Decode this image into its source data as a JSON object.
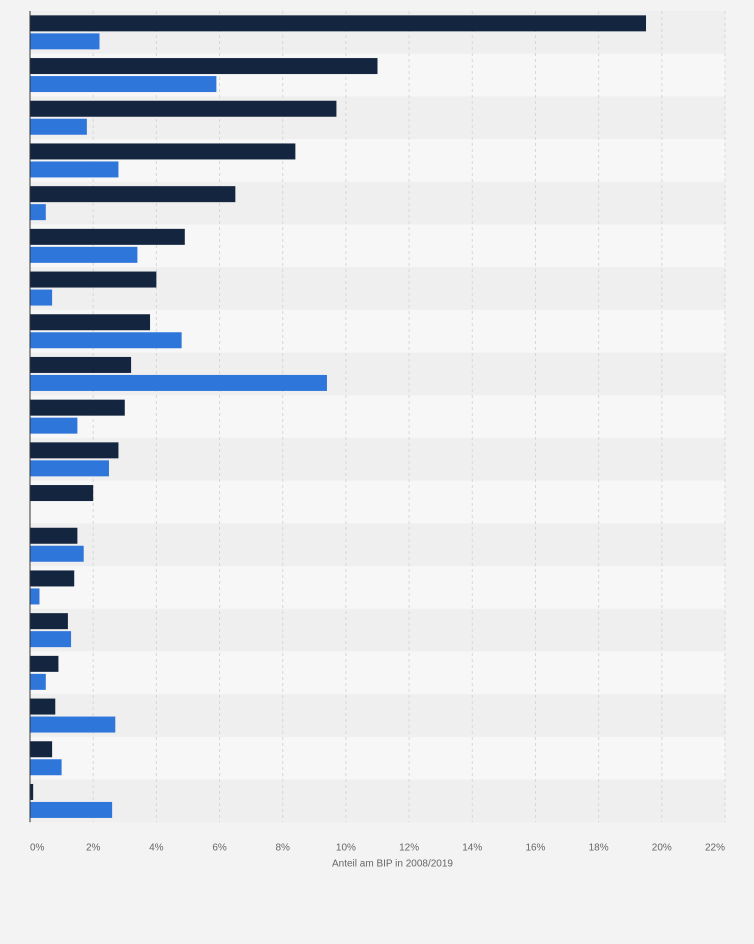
{
  "chart_data": {
    "type": "bar",
    "orientation": "horizontal",
    "categories": [
      "",
      "",
      "",
      "",
      "",
      "",
      "",
      "",
      "",
      "",
      "",
      "",
      "",
      "",
      "",
      "",
      "",
      "",
      ""
    ],
    "series": [
      {
        "values": [
          19.5,
          11.0,
          9.7,
          8.4,
          6.5,
          4.9,
          4.0,
          3.8,
          3.2,
          3.0,
          2.8,
          2.0,
          1.5,
          1.4,
          1.2,
          0.9,
          0.8,
          0.7,
          0.1
        ],
        "color": "#14263f"
      },
      {
        "values": [
          2.2,
          5.9,
          1.8,
          2.8,
          0.5,
          3.4,
          0.7,
          4.8,
          9.4,
          1.5,
          2.5,
          null,
          1.7,
          0.3,
          1.3,
          0.5,
          2.7,
          1.0,
          2.6
        ],
        "color": "#2f76db"
      }
    ],
    "xlim": [
      0,
      22
    ],
    "xticks": [
      "0%",
      "2%",
      "4%",
      "6%",
      "8%",
      "10%",
      "12%",
      "14%",
      "16%",
      "18%",
      "20%",
      "22%"
    ],
    "xlabel": "Anteil am BIP in 2008/2019",
    "grid": true,
    "legend": "none"
  }
}
